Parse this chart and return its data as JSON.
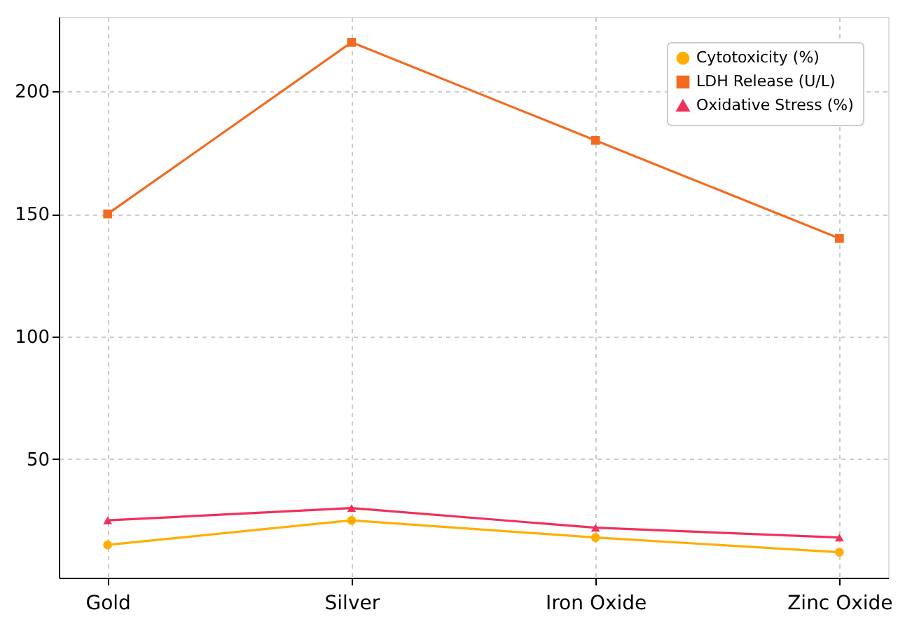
{
  "chart_data": {
    "type": "line",
    "categories": [
      "Gold",
      "Silver",
      "Iron Oxide",
      "Zinc Oxide"
    ],
    "series": [
      {
        "name": "Cytotoxicity (%)",
        "color": "#ffae00",
        "marker": "circle",
        "values": [
          15,
          25,
          18,
          12
        ]
      },
      {
        "name": "LDH Release (U/L)",
        "color": "#f26b21",
        "marker": "square",
        "values": [
          150,
          220,
          180,
          140
        ]
      },
      {
        "name": "Oxidative Stress (%)",
        "color": "#f0305a",
        "marker": "triangle",
        "values": [
          25,
          30,
          22,
          18
        ]
      }
    ],
    "ylim": [
      1.6,
      230.4
    ],
    "yticks": [
      50,
      100,
      150,
      200
    ],
    "grid": true,
    "legend": "top right",
    "line_style": "solid"
  }
}
